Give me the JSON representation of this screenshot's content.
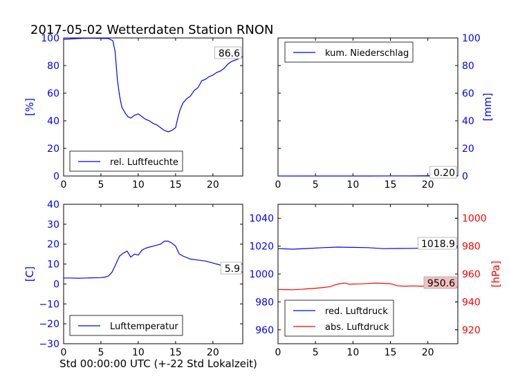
{
  "figure": {
    "title": "2017-05-02 Wetterdaten Station RNON",
    "xlabel": "Std 00:00:00 UTC (+-22 Std Lokalzeit)",
    "colors": {
      "primary": "#0000ff",
      "secondary": "#ff0000",
      "axes": "#000000"
    }
  },
  "chart_data": [
    {
      "id": "humidity",
      "type": "line",
      "xlim": [
        0,
        24
      ],
      "ylim": [
        0,
        100
      ],
      "xticks": [
        "0",
        "5",
        "10",
        "15",
        "20"
      ],
      "yticks": [
        "0",
        "20",
        "40",
        "60",
        "80",
        "100"
      ],
      "ylabel": "[%]",
      "legend": {
        "placement": "lower-center"
      },
      "annotation": "86.6",
      "series": [
        {
          "name": "rel. Luftfeuchte",
          "color": "#0000ff",
          "x": [
            0,
            1,
            2,
            3,
            4,
            5,
            6,
            6.6,
            6.9,
            7.2,
            7.5,
            7.8,
            8.2,
            8.6,
            9,
            9.5,
            10,
            10.5,
            11,
            11.5,
            12,
            12.5,
            13,
            13.5,
            14,
            14.5,
            15,
            15.3,
            15.6,
            16,
            16.5,
            17,
            17.5,
            18,
            18.5,
            19,
            19.5,
            20,
            20.5,
            21,
            21.5,
            22,
            22.5,
            23,
            23.5,
            24
          ],
          "y": [
            99,
            99.3,
            99.6,
            99.8,
            99.8,
            99.7,
            99.6,
            98,
            90,
            70,
            58,
            50,
            46,
            43,
            42,
            44,
            45,
            43,
            41,
            40,
            38,
            37,
            35,
            33,
            32,
            33,
            35,
            42,
            48,
            53,
            56,
            58,
            62,
            64,
            69,
            70,
            72,
            73,
            75,
            76,
            78,
            81,
            83,
            84,
            85,
            86.6
          ]
        }
      ]
    },
    {
      "id": "precipitation",
      "type": "line",
      "xlim": [
        0,
        24
      ],
      "ylim": [
        0,
        100
      ],
      "xticks": [
        "0",
        "5",
        "10",
        "15",
        "20"
      ],
      "yticks": [
        "0",
        "20",
        "40",
        "60",
        "80",
        "100"
      ],
      "ylabel": "[mm]",
      "legend": {
        "placement": "top-left"
      },
      "annotation": "0.20",
      "series": [
        {
          "name": "kum. Niederschlag",
          "color": "#0000ff",
          "x": [
            0,
            12,
            18,
            20,
            24
          ],
          "y": [
            0,
            0,
            0.1,
            0.2,
            0.2
          ]
        }
      ]
    },
    {
      "id": "temperature",
      "type": "line",
      "xlim": [
        0,
        24
      ],
      "ylim": [
        -30,
        40
      ],
      "xticks": [
        "0",
        "5",
        "10",
        "15",
        "20"
      ],
      "yticks": [
        "−30",
        "−20",
        "−10",
        "0",
        "10",
        "20",
        "30",
        "40"
      ],
      "ylabel": "[C]",
      "legend": {
        "placement": "lower-center"
      },
      "annotation": "5.9",
      "series": [
        {
          "name": "Lufttemperatur",
          "color": "#0000ff",
          "x": [
            0,
            1,
            2,
            3,
            4,
            5,
            5.5,
            6,
            6.5,
            7,
            7.5,
            8,
            8.5,
            9,
            9.5,
            10,
            10.5,
            11,
            11.5,
            12,
            12.5,
            13,
            13.5,
            14,
            14.5,
            15,
            15.5,
            16,
            17,
            18,
            19,
            20,
            21,
            22,
            23,
            24
          ],
          "y": [
            3,
            3,
            2.9,
            3,
            3.1,
            3.2,
            3.4,
            4,
            6,
            10,
            14,
            15.5,
            16.5,
            13.5,
            15,
            14.5,
            17,
            18,
            18.5,
            19,
            19.5,
            20,
            21.5,
            21.5,
            20.5,
            19,
            15,
            14,
            12.5,
            12,
            11.5,
            10.5,
            9.5,
            8.5,
            7,
            5.9
          ]
        }
      ]
    },
    {
      "id": "pressure",
      "type": "line",
      "xlim": [
        0,
        24
      ],
      "ylim": [
        950,
        1050
      ],
      "ylim_right": [
        910,
        1010
      ],
      "xticks": [
        "0",
        "5",
        "10",
        "15",
        "20"
      ],
      "yticks": [
        "960",
        "980",
        "1000",
        "1020",
        "1040"
      ],
      "yticks_right": [
        "920",
        "940",
        "960",
        "980",
        "1000"
      ],
      "ylabel_right": "[hPa]",
      "legend": {
        "placement": "lower-center"
      },
      "annotations": [
        "1018.9",
        "950.6"
      ],
      "series": [
        {
          "name": "red. Luftdruck",
          "color": "#0000ff",
          "axis": "left",
          "x": [
            0,
            2,
            4,
            6,
            8,
            10,
            12,
            14,
            16,
            18,
            20,
            22,
            24
          ],
          "y": [
            1018.2,
            1017.8,
            1018.3,
            1018.9,
            1019.3,
            1019.1,
            1018.9,
            1018.2,
            1018.3,
            1018.4,
            1018.6,
            1018.9,
            1018.9
          ]
        },
        {
          "name": "abs. Luftdruck",
          "color": "#ff0000",
          "axis": "right",
          "x": [
            0,
            1,
            2,
            3,
            4,
            5,
            6,
            7,
            7.5,
            8,
            8.5,
            9,
            9.5,
            10,
            11,
            12,
            13,
            14,
            15,
            15.5,
            16,
            17,
            18,
            19,
            20,
            22,
            24
          ],
          "y": [
            949,
            948.8,
            948.7,
            949,
            949.4,
            949.8,
            950.3,
            951,
            952,
            952.8,
            953.2,
            953.5,
            952.6,
            952.8,
            952.9,
            953.2,
            953.5,
            953.3,
            953,
            952.3,
            951.5,
            951.3,
            951.5,
            951.3,
            951.4,
            951.2,
            950.6
          ]
        }
      ]
    }
  ]
}
